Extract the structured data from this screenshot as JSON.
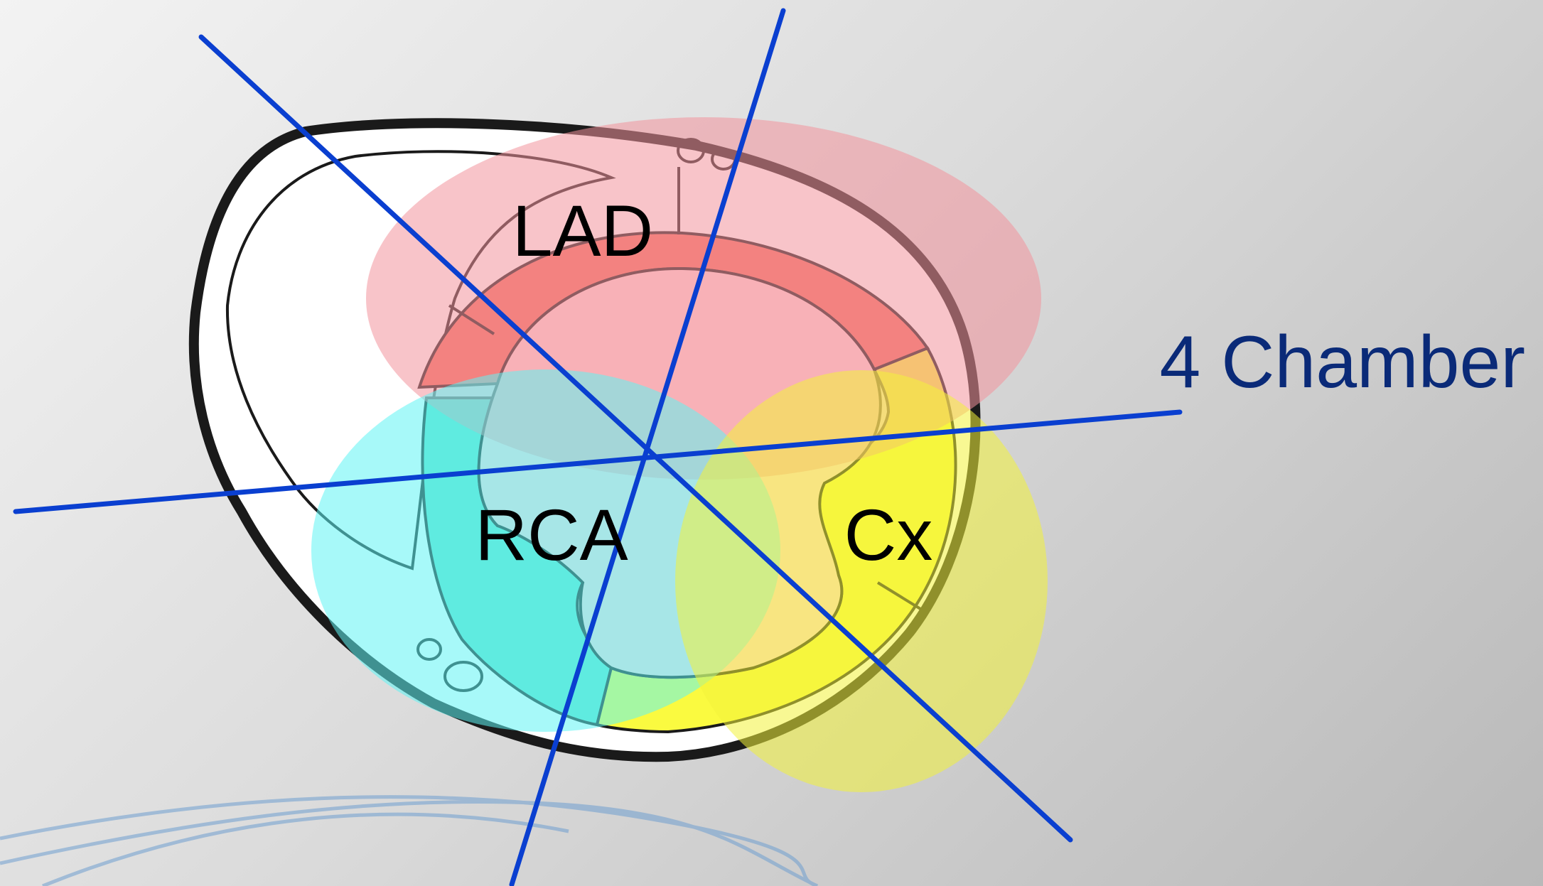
{
  "diagram": {
    "territories": [
      {
        "name": "LAD",
        "color": "#f2939c"
      },
      {
        "name": "RCA",
        "color": "#5ff4f4"
      },
      {
        "name": "Cx",
        "color": "#f2f23a"
      }
    ],
    "view_label": "4 Chamber",
    "colors": {
      "scan_line": "#0a3fd0",
      "view_label": "#0a2a78",
      "myocardium_lad": "#f46e5e",
      "myocardium_rca": "#5fe0c8",
      "myocardium_cx": "#fafa40",
      "outline": "#1a1a1a"
    }
  }
}
